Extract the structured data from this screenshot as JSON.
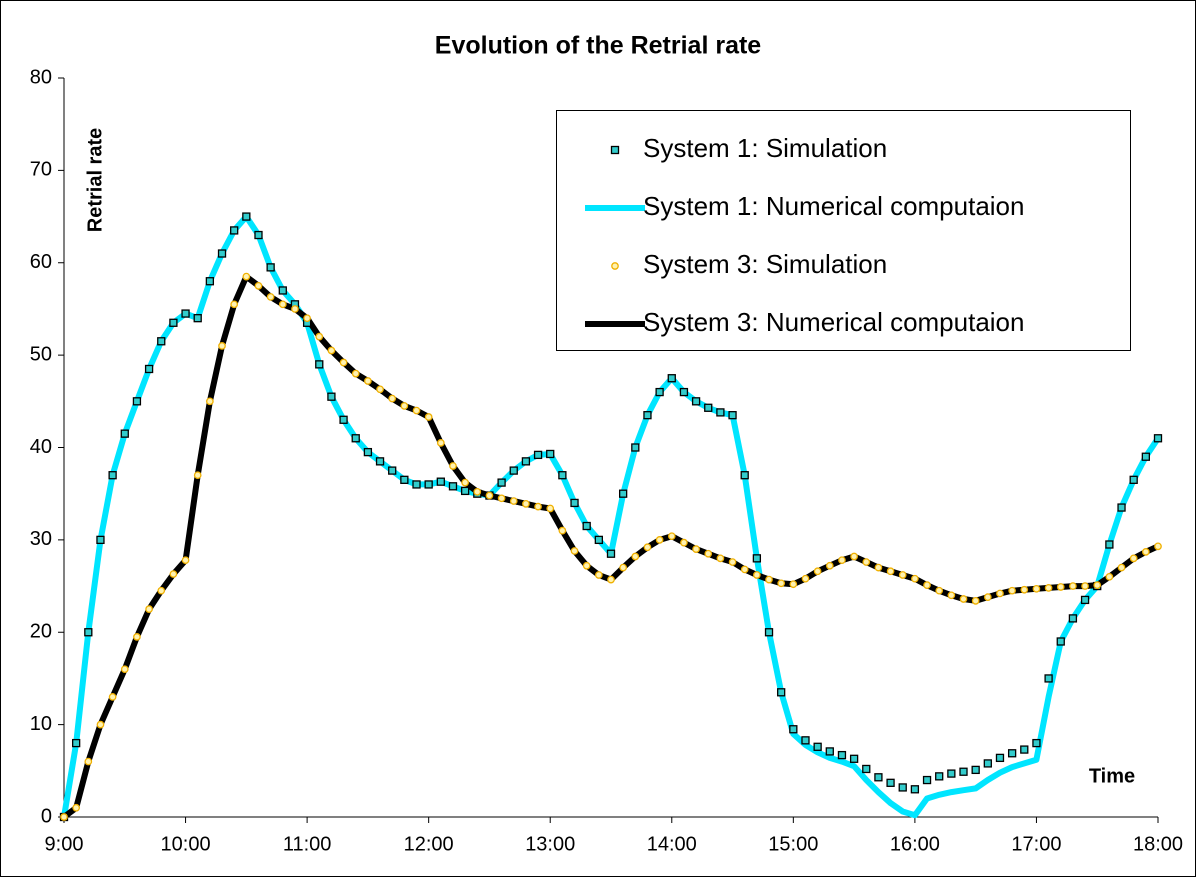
{
  "chart_data": {
    "type": "line",
    "title": "Evolution of the Retrial rate",
    "ylabel": "Retrial rate",
    "xlabel": "Time",
    "xlim": [
      9,
      18
    ],
    "xticks": [
      {
        "value": 9,
        "label": "9:00"
      },
      {
        "value": 10,
        "label": "10:00"
      },
      {
        "value": 11,
        "label": "11:00"
      },
      {
        "value": 12,
        "label": "12:00"
      },
      {
        "value": 13,
        "label": "13:00"
      },
      {
        "value": 14,
        "label": "14:00"
      },
      {
        "value": 15,
        "label": "15:00"
      },
      {
        "value": 16,
        "label": "16:00"
      },
      {
        "value": 17,
        "label": "17:00"
      },
      {
        "value": 18,
        "label": "18:00"
      }
    ],
    "ylim": [
      0,
      80
    ],
    "yticks": [
      0,
      10,
      20,
      30,
      40,
      50,
      60,
      70,
      80
    ],
    "grid": false,
    "legend": "upper right",
    "x": [
      9,
      9.1,
      9.2,
      9.3,
      9.4,
      9.5,
      9.6,
      9.7,
      9.8,
      9.9,
      10,
      10.1,
      10.2,
      10.3,
      10.4,
      10.5,
      10.6,
      10.7,
      10.8,
      10.9,
      11,
      11.1,
      11.2,
      11.3,
      11.4,
      11.5,
      11.6,
      11.7,
      11.8,
      11.9,
      12,
      12.1,
      12.2,
      12.3,
      12.4,
      12.5,
      12.6,
      12.7,
      12.8,
      12.9,
      13,
      13.1,
      13.2,
      13.3,
      13.4,
      13.5,
      13.6,
      13.7,
      13.8,
      13.9,
      14,
      14.1,
      14.2,
      14.3,
      14.4,
      14.5,
      14.6,
      14.7,
      14.8,
      14.9,
      15,
      15.1,
      15.2,
      15.3,
      15.4,
      15.5,
      15.6,
      15.7,
      15.8,
      15.9,
      16,
      16.1,
      16.2,
      16.3,
      16.4,
      16.5,
      16.6,
      16.7,
      16.8,
      16.9,
      17,
      17.1,
      17.2,
      17.3,
      17.4,
      17.5,
      17.6,
      17.7,
      17.8,
      17.9,
      18
    ],
    "series": [
      {
        "name": "System 1: Simulation",
        "style": "marker",
        "marker": "square",
        "color": "#000000",
        "fill": "#33cccc",
        "values": [
          0,
          8,
          20,
          30,
          37,
          41.5,
          45,
          48.5,
          51.5,
          53.5,
          54.5,
          54,
          58,
          61,
          63.5,
          65,
          63,
          59.5,
          57,
          55.5,
          53.5,
          49,
          45.5,
          43,
          41,
          39.5,
          38.5,
          37.5,
          36.5,
          36,
          36,
          36.3,
          35.8,
          35.3,
          35,
          34.8,
          36.2,
          37.5,
          38.5,
          39.2,
          39.3,
          37,
          34,
          31.5,
          30,
          28.5,
          35,
          40,
          43.5,
          46,
          47.5,
          46,
          45,
          44.3,
          43.8,
          43.5,
          37,
          28,
          20,
          13.5,
          9.5,
          8.3,
          7.6,
          7.1,
          6.7,
          6.3,
          5.2,
          4.3,
          3.7,
          3.2,
          3,
          4,
          4.4,
          4.7,
          4.9,
          5.1,
          5.8,
          6.4,
          6.9,
          7.3,
          8,
          15,
          19,
          21.5,
          23.5,
          25,
          29.5,
          33.5,
          36.5,
          39,
          41
        ]
      },
      {
        "name": "System 1: Numerical computaion",
        "style": "line",
        "color": "#00e5ff",
        "values": [
          0,
          8,
          20,
          30,
          37,
          41.5,
          45,
          48.5,
          51.5,
          53.5,
          54.5,
          54,
          58,
          61,
          63.5,
          65,
          63,
          59.5,
          57,
          55.5,
          53.5,
          49,
          45.5,
          43,
          41,
          39.5,
          38.5,
          37.5,
          36.5,
          36,
          36,
          36.3,
          35.8,
          35.3,
          35,
          34.8,
          36.2,
          37.5,
          38.5,
          39.2,
          39.3,
          37,
          34,
          31.5,
          30,
          28.5,
          35,
          40,
          43.5,
          46,
          47.5,
          46,
          45,
          44.3,
          43.8,
          43.5,
          37,
          28,
          20,
          13.5,
          9,
          7.8,
          7,
          6.4,
          6,
          5.5,
          4,
          2.7,
          1.5,
          0.6,
          0.2,
          2,
          2.4,
          2.7,
          2.9,
          3.1,
          4,
          4.8,
          5.4,
          5.8,
          6.2,
          13,
          19,
          21.5,
          23.5,
          25,
          29.5,
          33.5,
          36.5,
          39,
          41
        ]
      },
      {
        "name": "System 3: Simulation",
        "style": "marker",
        "marker": "circle",
        "color": "#f0b000",
        "fill": "#fff2b0",
        "values": [
          0,
          1,
          6,
          10,
          13,
          16,
          19.5,
          22.5,
          24.5,
          26.3,
          27.8,
          37,
          45,
          51,
          55.5,
          58.5,
          57.5,
          56.3,
          55.5,
          55,
          54,
          52,
          50.5,
          49.2,
          48,
          47.2,
          46.3,
          45.3,
          44.5,
          44,
          43.3,
          40.5,
          38,
          36.2,
          35.2,
          34.8,
          34.5,
          34.2,
          33.9,
          33.6,
          33.4,
          31,
          28.8,
          27.2,
          26.2,
          25.7,
          27,
          28.2,
          29.2,
          30,
          30.4,
          29.7,
          29,
          28.5,
          28,
          27.6,
          26.8,
          26.2,
          25.7,
          25.3,
          25.2,
          25.8,
          26.6,
          27.2,
          27.8,
          28.2,
          27.6,
          27,
          26.6,
          26.2,
          25.8,
          25.1,
          24.5,
          24,
          23.6,
          23.4,
          23.8,
          24.2,
          24.5,
          24.6,
          24.7,
          24.8,
          24.9,
          25,
          25,
          25.1,
          26,
          27,
          28,
          28.7,
          29.3
        ]
      },
      {
        "name": "System 3: Numerical computaion",
        "style": "line",
        "color": "#000000",
        "values": [
          0,
          1,
          6,
          10,
          13,
          16,
          19.5,
          22.5,
          24.5,
          26.3,
          27.8,
          37,
          45,
          51,
          55.5,
          58.5,
          57.5,
          56.3,
          55.5,
          55,
          54,
          52,
          50.5,
          49.2,
          48,
          47.2,
          46.3,
          45.3,
          44.5,
          44,
          43.3,
          40.5,
          38,
          36.2,
          35.2,
          34.8,
          34.5,
          34.2,
          33.9,
          33.6,
          33.4,
          31,
          28.8,
          27.2,
          26.2,
          25.7,
          27,
          28.2,
          29.2,
          30,
          30.4,
          29.7,
          29,
          28.5,
          28,
          27.6,
          26.8,
          26.2,
          25.7,
          25.3,
          25.2,
          25.8,
          26.6,
          27.2,
          27.8,
          28.2,
          27.6,
          27,
          26.6,
          26.2,
          25.8,
          25.1,
          24.5,
          24,
          23.6,
          23.4,
          23.8,
          24.2,
          24.5,
          24.6,
          24.7,
          24.8,
          24.9,
          25,
          25,
          25.1,
          26,
          27,
          28,
          28.7,
          29.3
        ]
      }
    ]
  }
}
